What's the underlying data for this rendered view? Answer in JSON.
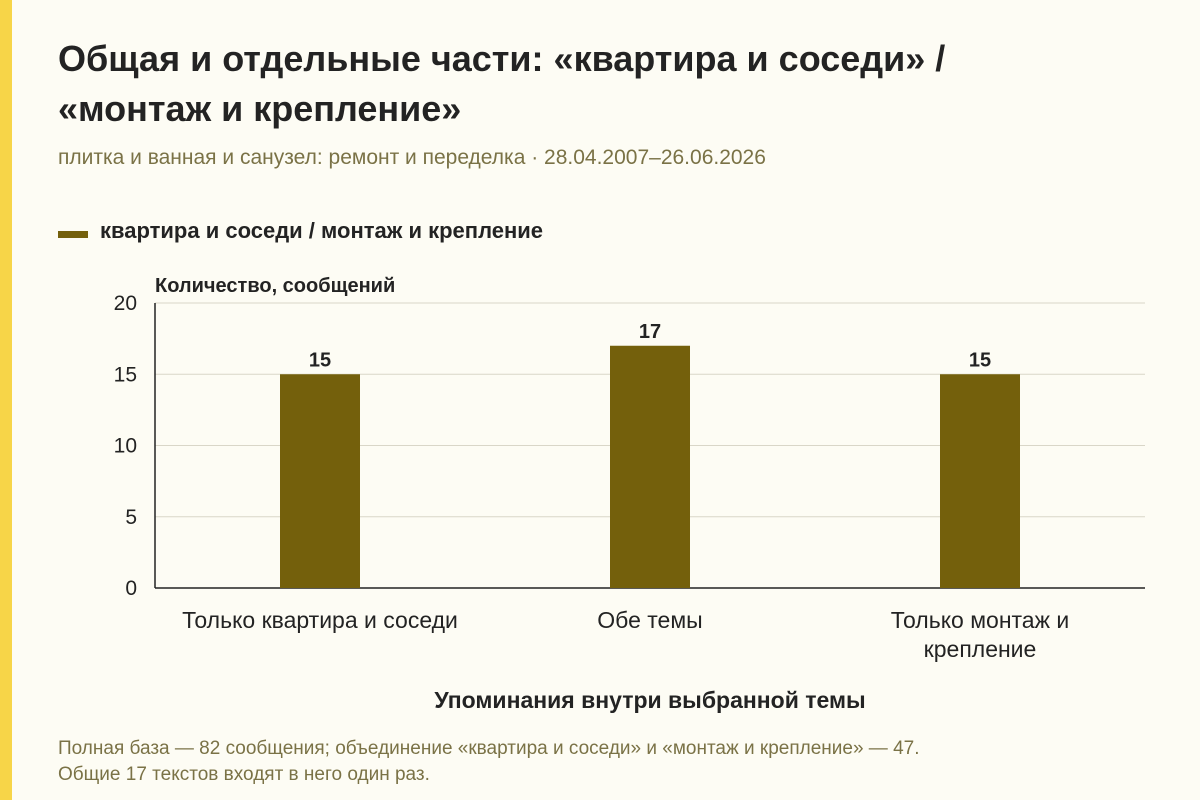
{
  "title_line1": "Общая и отдельные части: «квартира и соседи» /",
  "title_line2": "«монтаж и крепление»",
  "subtitle": "плитка и ванная и санузел: ремонт и переделка · 28.04.2007–26.06.2026",
  "legend_label": "квартира и соседи / монтаж и крепление",
  "footnote_line1": "Полная база — 82 сообщения; объединение «квартира и соседи» и «монтаж и крепление» — 47.",
  "footnote_line2": "Общие 17 текстов входят в него один раз.",
  "colors": {
    "bar": "#74600c",
    "accent_strip": "#f7d548",
    "background": "#fdfcf4"
  },
  "chart_data": {
    "type": "bar",
    "categories": [
      [
        "Только квартира и соседи"
      ],
      [
        "Обе темы"
      ],
      [
        "Только монтаж и",
        "крепление"
      ]
    ],
    "values": [
      15,
      17,
      15
    ],
    "data_labels": [
      "15",
      "17",
      "15"
    ],
    "title": "Общая и отдельные части: «квартира и соседи» / «монтаж и крепление»",
    "xlabel": "Упоминания внутри выбранной темы",
    "ylabel": "Количество, сообщений",
    "ylim": [
      0,
      20
    ],
    "yticks": [
      0,
      5,
      10,
      15,
      20
    ],
    "grid": true,
    "legend": "top-left"
  }
}
